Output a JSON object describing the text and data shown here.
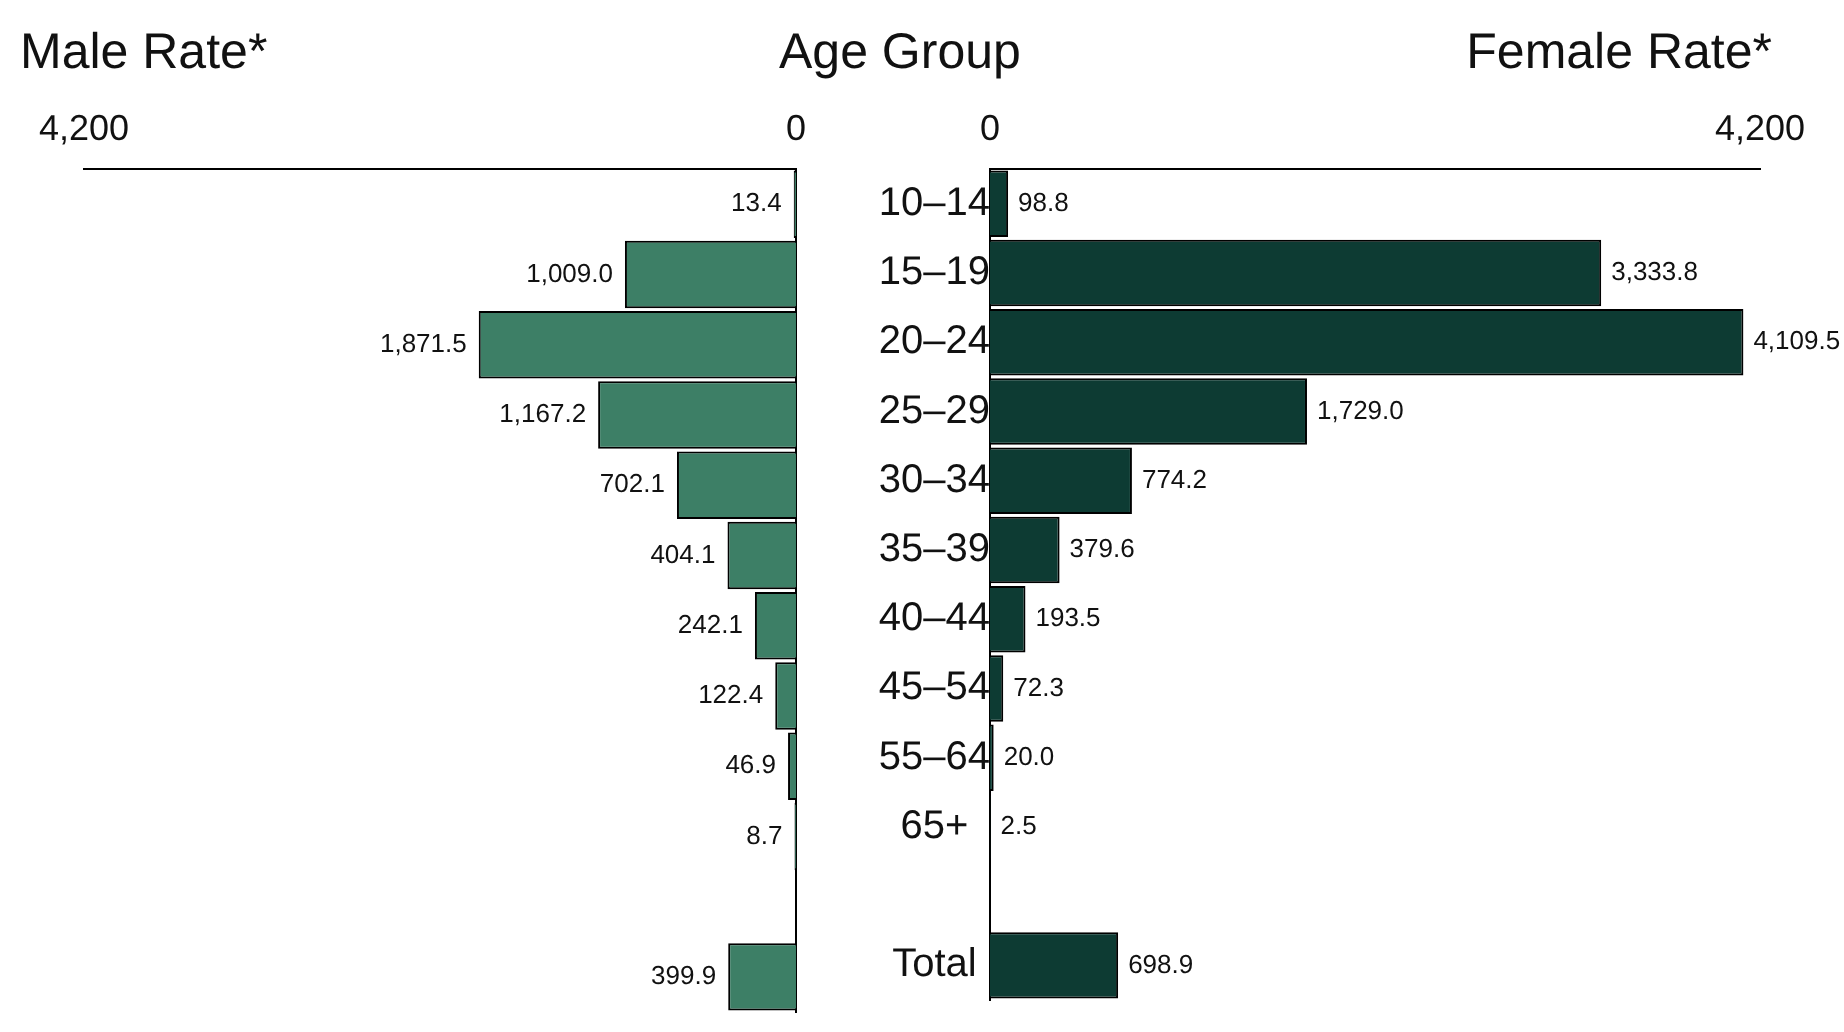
{
  "chart_data": [
    {
      "type": "bar",
      "orientation": "horizontal",
      "title": "Male Rate*",
      "categories": [
        "10–14",
        "15–19",
        "20–24",
        "25–29",
        "30–34",
        "35–39",
        "40–44",
        "45–54",
        "55–64",
        "65+",
        null,
        "Total"
      ],
      "values": [
        13.4,
        1009.0,
        1871.5,
        1167.2,
        702.1,
        404.1,
        242.1,
        122.4,
        46.9,
        8.7,
        null,
        399.9
      ],
      "value_labels": [
        "13.4",
        "1,009.0",
        "1,871.5",
        "1,167.2",
        "702.1",
        "404.1",
        "242.1",
        "122.4",
        "46.9",
        "8.7",
        null,
        "399.9"
      ],
      "color": "#3d7f66",
      "xlim": [
        4200,
        0
      ],
      "xticks": [
        {
          "value": 4200,
          "label": "4,200"
        },
        0
      ],
      "tick_labels": "x"
    },
    {
      "type": "bar",
      "orientation": "horizontal",
      "title": "Female Rate*",
      "ylabel": "Age Group",
      "categories": [
        "10–14",
        "15–19",
        "20–24",
        "25–29",
        "30–34",
        "35–39",
        "40–44",
        "45–54",
        "55–64",
        "65+",
        null,
        "Total"
      ],
      "values": [
        98.8,
        3333.8,
        4109.5,
        1729.0,
        774.2,
        379.6,
        193.5,
        72.3,
        20.0,
        2.5,
        null,
        698.9
      ],
      "value_labels": [
        "98.8",
        "3,333.8",
        "4,109.5",
        "1,729.0",
        "774.2",
        "379.6",
        "193.5",
        "72.3",
        "20.0",
        "2.5",
        null,
        "698.9"
      ],
      "color": "#0d3b33",
      "xlim": [
        0,
        4200
      ],
      "xticks": [
        0,
        {
          "value": 4200,
          "label": "4,200"
        }
      ]
    }
  ]
}
